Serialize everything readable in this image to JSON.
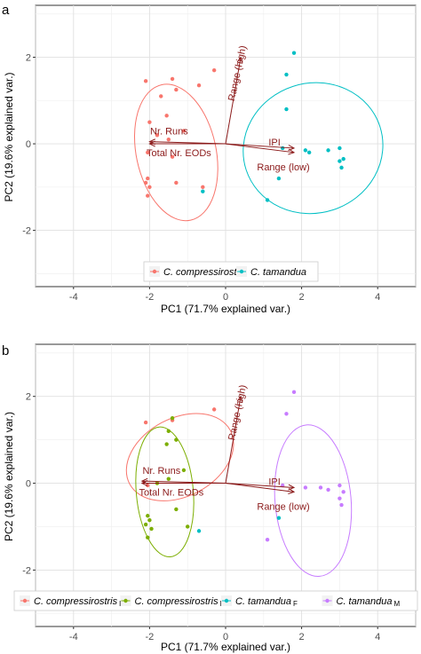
{
  "chart_data": [
    {
      "type": "scatter",
      "panel_label": "a",
      "xlabel": "PC1 (71.7% explained var.)",
      "ylabel": "PC2 (19.6% explained var.)",
      "xlim": [
        -5,
        5
      ],
      "ylim": [
        -3.3,
        3.2
      ],
      "xticks": [
        -4,
        -2,
        0,
        2,
        4
      ],
      "yticks": [
        -2,
        0,
        2
      ],
      "grid": true,
      "legend_position": "bottom",
      "series": [
        {
          "name": "C. compressirostris",
          "color": "#f8766d",
          "points": [
            [
              -2.1,
              1.45
            ],
            [
              -1.4,
              1.5
            ],
            [
              -0.7,
              1.35
            ],
            [
              -1.3,
              1.25
            ],
            [
              -1.7,
              1.1
            ],
            [
              -1.55,
              0.65
            ],
            [
              -2.0,
              0.5
            ],
            [
              -1.1,
              0.3
            ],
            [
              -1.5,
              0.1
            ],
            [
              -1.8,
              0.2
            ],
            [
              -2.05,
              -0.2
            ],
            [
              -1.4,
              -0.3
            ],
            [
              -2.05,
              -0.8
            ],
            [
              -2.1,
              -0.9
            ],
            [
              -2.0,
              -1.0
            ],
            [
              -1.3,
              -0.9
            ],
            [
              -2.05,
              -1.2
            ],
            [
              -0.6,
              -1.0
            ],
            [
              -0.3,
              1.7
            ]
          ],
          "ellipse": {
            "cx": -1.3,
            "cy": -0.2,
            "rx": 1.05,
            "ry": 1.6,
            "angle": 12
          }
        },
        {
          "name": "C. tamandua",
          "color": "#00bfc4",
          "points": [
            [
              1.8,
              2.1
            ],
            [
              1.6,
              1.6
            ],
            [
              1.6,
              0.8
            ],
            [
              1.5,
              -0.1
            ],
            [
              2.1,
              -0.15
            ],
            [
              2.7,
              -0.15
            ],
            [
              3.0,
              -0.1
            ],
            [
              3.1,
              -0.35
            ],
            [
              3.0,
              -0.4
            ],
            [
              3.05,
              -0.55
            ],
            [
              1.4,
              -0.8
            ],
            [
              1.1,
              -1.3
            ],
            [
              -0.6,
              -1.1
            ],
            [
              2.2,
              -0.2
            ]
          ],
          "ellipse": {
            "cx": 2.3,
            "cy": -0.1,
            "rx": 1.85,
            "ry": 1.5,
            "angle": 18
          }
        }
      ],
      "loadings": [
        {
          "label": "Range (high)",
          "x": 0.4,
          "y": 2.0
        },
        {
          "label": "IPI",
          "x": 1.8,
          "y": -0.1
        },
        {
          "label": "Range (low)",
          "x": 1.8,
          "y": -0.2
        },
        {
          "label": "Nr. Runs",
          "x": -2.0,
          "y": 0.05
        },
        {
          "label": "Total Nr. EODs",
          "x": -2.0,
          "y": 0.0
        }
      ]
    },
    {
      "type": "scatter",
      "panel_label": "b",
      "xlabel": "PC1 (71.7% explained var.)",
      "ylabel": "PC2 (19.6% explained var.)",
      "xlim": [
        -5,
        5
      ],
      "ylim": [
        -3.3,
        3.2
      ],
      "xticks": [
        -4,
        -2,
        0,
        2,
        4
      ],
      "yticks": [
        -2,
        0,
        2
      ],
      "grid": true,
      "legend_position": "bottom",
      "series": [
        {
          "name": "C. compressirostris",
          "sex": "F",
          "color": "#f8766d",
          "points": [
            [
              -2.1,
              1.4
            ],
            [
              -1.4,
              1.45
            ],
            [
              -0.3,
              1.7
            ],
            [
              -2.05,
              -0.05
            ]
          ],
          "ellipse": {
            "cx": -1.2,
            "cy": 0.6,
            "rx": 1.5,
            "ry": 0.9,
            "angle": 28
          }
        },
        {
          "name": "C. compressirostris",
          "sex": "M",
          "color": "#7cae00",
          "points": [
            [
              -1.4,
              1.5
            ],
            [
              -1.5,
              1.2
            ],
            [
              -1.3,
              1.0
            ],
            [
              -1.55,
              0.9
            ],
            [
              -1.1,
              0.3
            ],
            [
              -1.5,
              0.1
            ],
            [
              -1.8,
              0.0
            ],
            [
              -2.05,
              -0.75
            ],
            [
              -2.0,
              -0.85
            ],
            [
              -2.1,
              -0.95
            ],
            [
              -1.95,
              -1.05
            ],
            [
              -1.3,
              -0.6
            ],
            [
              -1.0,
              -1.0
            ],
            [
              -2.05,
              -1.25
            ]
          ],
          "ellipse": {
            "cx": -1.6,
            "cy": -0.2,
            "rx": 0.75,
            "ry": 1.5,
            "angle": 5
          }
        },
        {
          "name": "C. tamandua",
          "sex": "F",
          "color": "#00bfc4",
          "points": [
            [
              -0.7,
              -1.1
            ],
            [
              1.4,
              -0.8
            ]
          ],
          "ellipse": null
        },
        {
          "name": "C. tamandua",
          "sex": "M",
          "color": "#c77cff",
          "points": [
            [
              1.8,
              2.1
            ],
            [
              1.6,
              1.6
            ],
            [
              1.5,
              -0.05
            ],
            [
              2.1,
              -0.1
            ],
            [
              2.5,
              -0.1
            ],
            [
              2.7,
              -0.15
            ],
            [
              3.0,
              -0.05
            ],
            [
              3.1,
              -0.2
            ],
            [
              3.0,
              -0.35
            ],
            [
              3.05,
              -0.5
            ],
            [
              1.1,
              -1.3
            ]
          ],
          "ellipse": {
            "cx": 2.3,
            "cy": -0.4,
            "rx": 1.0,
            "ry": 1.75,
            "angle": 5
          }
        }
      ],
      "loadings": [
        {
          "label": "Range (high)",
          "x": 0.4,
          "y": 2.0
        },
        {
          "label": "IPI",
          "x": 1.8,
          "y": -0.1
        },
        {
          "label": "Range (low)",
          "x": 1.8,
          "y": -0.2
        },
        {
          "label": "Nr. Runs",
          "x": -2.2,
          "y": 0.05
        },
        {
          "label": "Total Nr. EODs",
          "x": -2.2,
          "y": 0.0
        }
      ]
    }
  ]
}
